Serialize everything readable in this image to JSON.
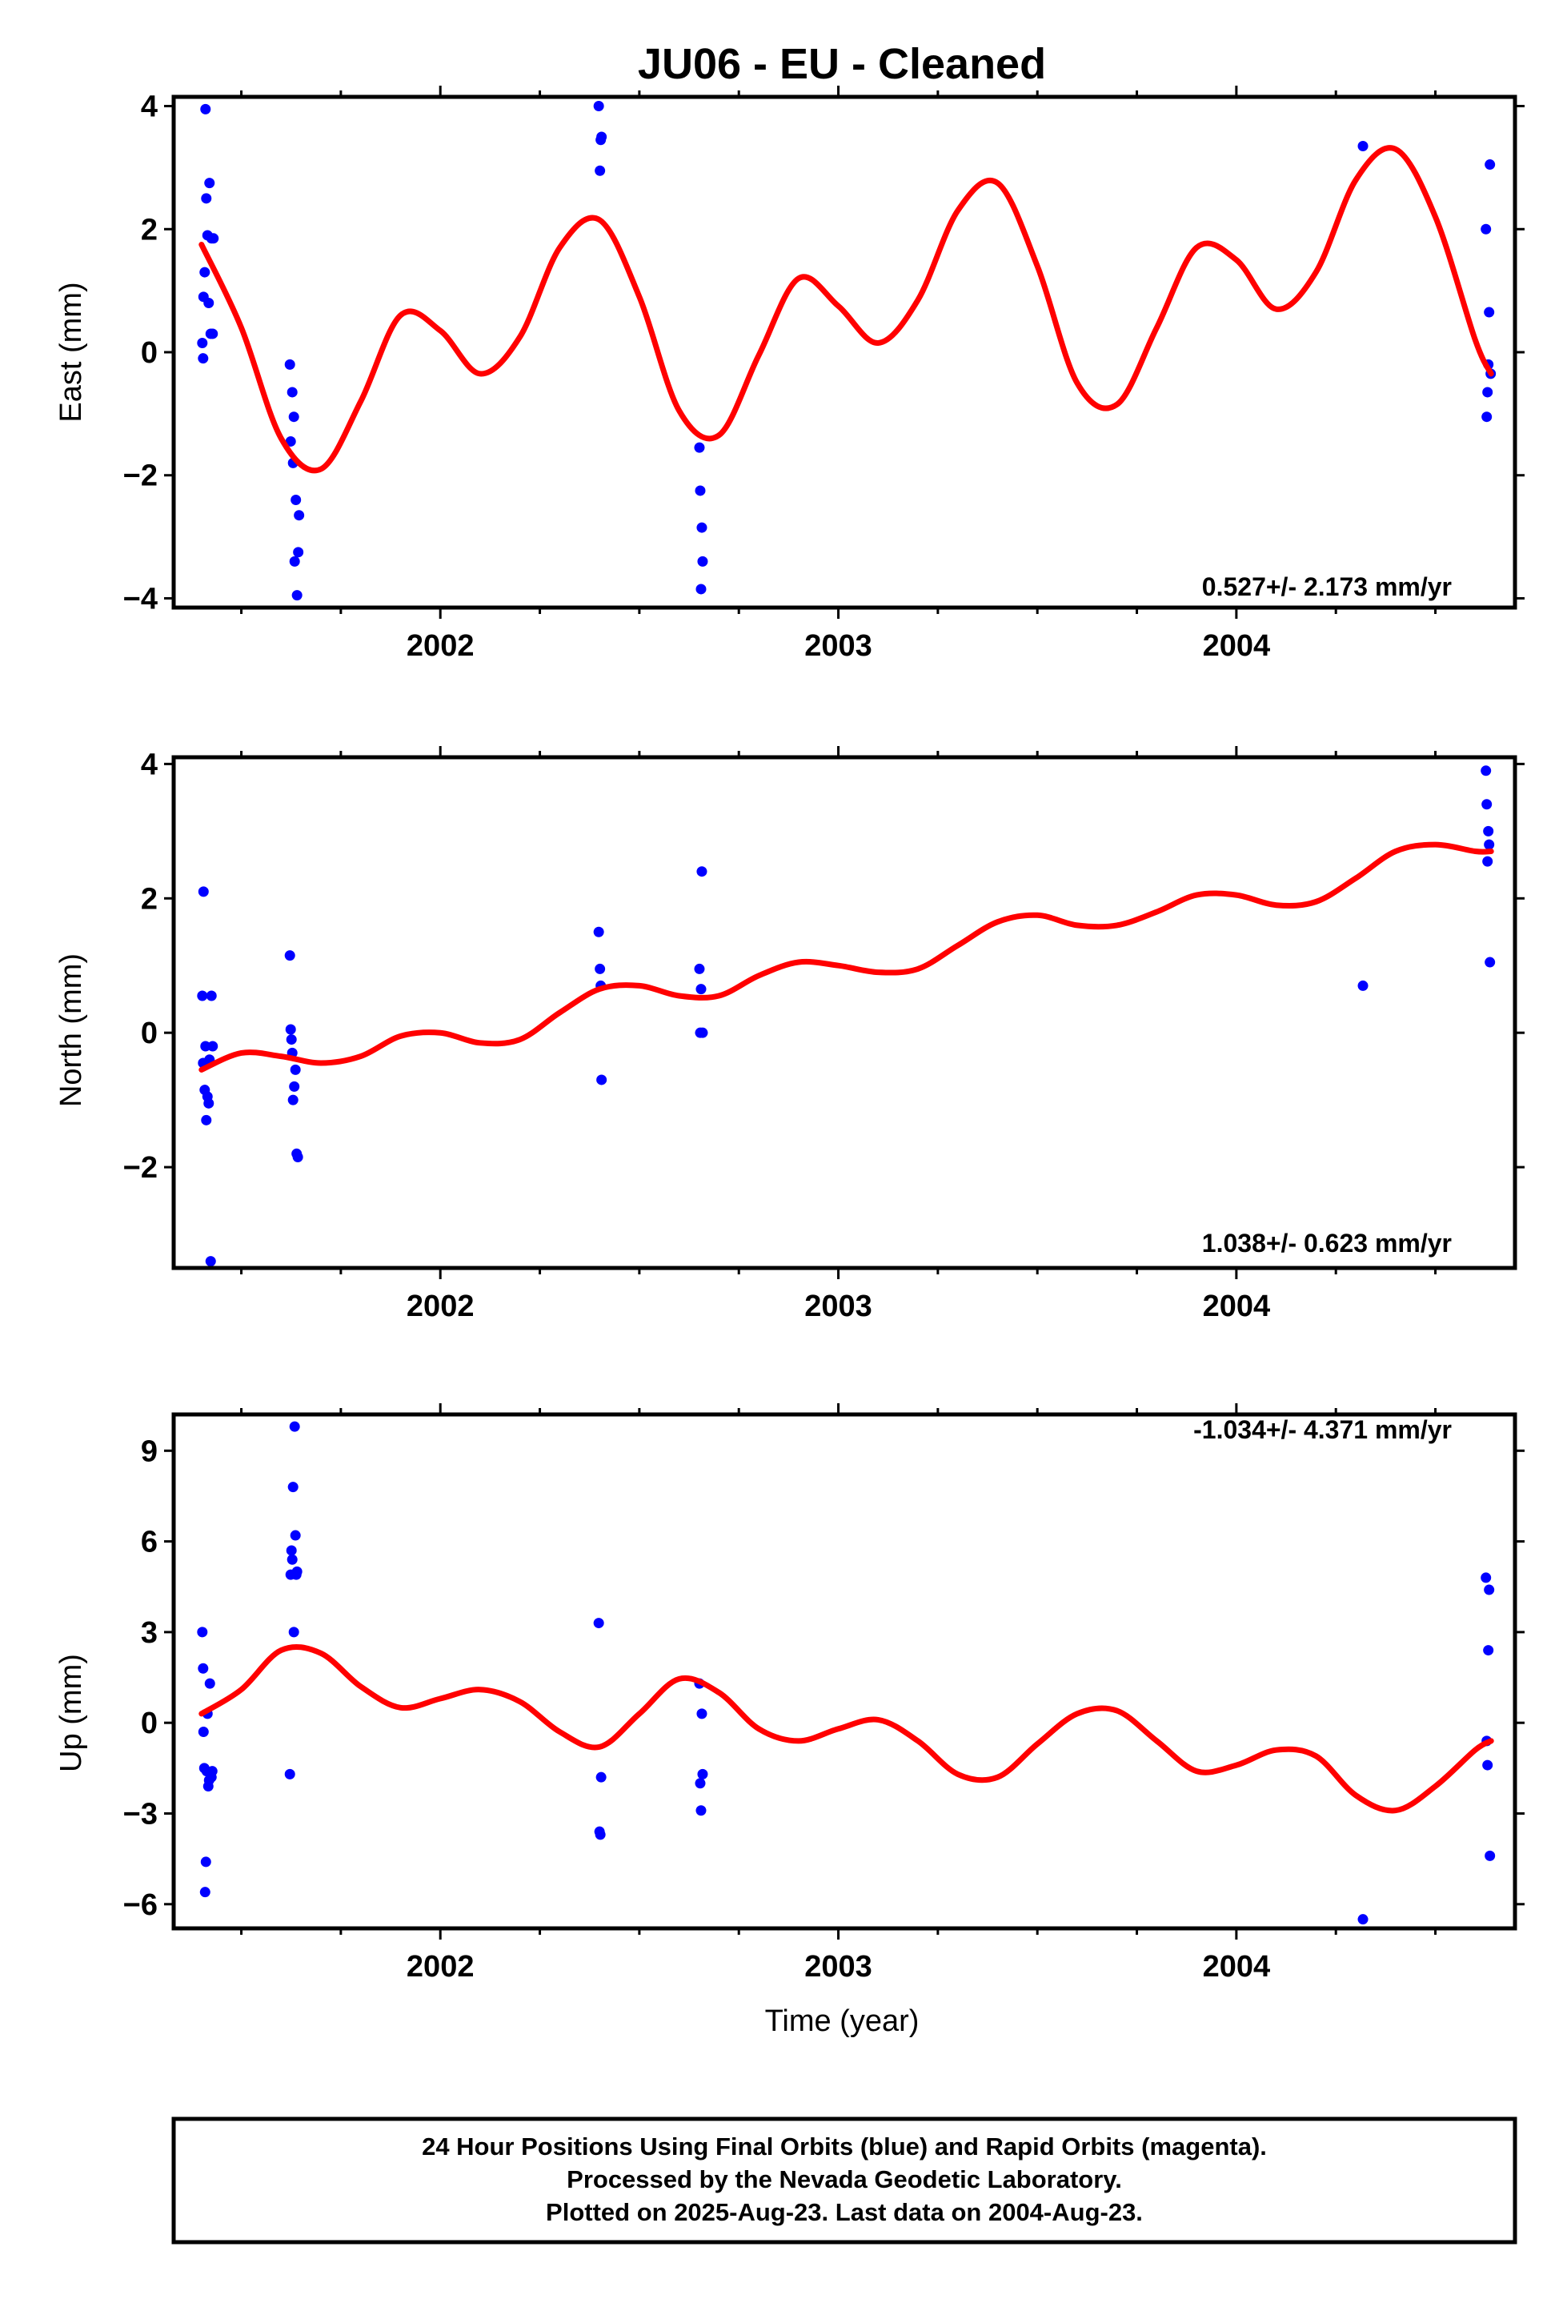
{
  "title": "JU06  - EU - Cleaned",
  "xlabel": "Time (year)",
  "footer": [
    "24 Hour Positions Using Final Orbits (blue) and Rapid Orbits (magenta).",
    "Processed by the Nevada Geodetic Laboratory.",
    "Plotted on 2025-Aug-23. Last data on 2004-Aug-23."
  ],
  "colors": {
    "points": "#0000ff",
    "fit": "#ff0000",
    "frame": "#000000"
  },
  "chart_data": [
    {
      "type": "scatter",
      "ylabel": "East (mm)",
      "rate": "0.527+/- 2.173 mm/yr",
      "xlim": [
        2001.33,
        2004.7
      ],
      "ylim": [
        -4.15,
        4.15
      ],
      "yticks": [
        -4,
        -2,
        0,
        2,
        4
      ],
      "yticklabels": [
        "−4",
        "−2",
        "0",
        "2",
        "4"
      ],
      "xticks": [
        2002,
        2003,
        2004
      ],
      "xticklabels": [
        "2002",
        "2003",
        "2004"
      ],
      "x_minor_ticks": [
        2001.5,
        2001.75,
        2002.25,
        2002.5,
        2002.75,
        2003.25,
        2003.5,
        2003.75,
        2004.25,
        2004.5
      ],
      "points": {
        "x": [
          2001.402,
          2001.404,
          2001.405,
          2001.408,
          2001.41,
          2001.412,
          2001.415,
          2001.418,
          2001.42,
          2001.423,
          2001.425,
          2001.428,
          2001.43,
          2001.622,
          2001.624,
          2001.628,
          2001.63,
          2001.632,
          2001.634,
          2001.637,
          2001.64,
          2001.643,
          2001.645,
          2002.398,
          2002.401,
          2002.403,
          2002.405,
          2002.651,
          2002.653,
          2002.655,
          2002.657,
          2002.659,
          2004.318,
          2004.627,
          2004.629,
          2004.631,
          2004.633,
          2004.635,
          2004.637,
          2004.639
        ],
        "y": [
          0.15,
          -0.1,
          0.9,
          1.3,
          3.95,
          2.5,
          1.9,
          0.8,
          2.75,
          0.3,
          1.85,
          0.3,
          1.85,
          -0.2,
          -1.45,
          -0.65,
          -1.8,
          -1.05,
          -3.4,
          -2.4,
          -3.95,
          -3.25,
          -2.65,
          4.0,
          2.95,
          3.45,
          3.5,
          -1.55,
          -2.25,
          -3.85,
          -2.85,
          -3.4,
          3.35,
          2.0,
          -1.05,
          -0.65,
          -0.2,
          0.65,
          3.05,
          -0.35
        ]
      },
      "fit": {
        "x": [
          2001.4,
          2001.5,
          2001.6,
          2001.7,
          2001.8,
          2001.9,
          2002.0,
          2002.1,
          2002.2,
          2002.3,
          2002.4,
          2002.5,
          2002.6,
          2002.7,
          2002.8,
          2002.9,
          2003.0,
          2003.1,
          2003.2,
          2003.3,
          2003.4,
          2003.5,
          2003.6,
          2003.7,
          2003.8,
          2003.9,
          2004.0,
          2004.1,
          2004.2,
          2004.3,
          2004.4,
          2004.5,
          2004.6,
          2004.64
        ],
        "y": [
          1.75,
          0.4,
          -1.4,
          -1.9,
          -0.8,
          0.6,
          0.35,
          -0.35,
          0.25,
          1.7,
          2.15,
          0.9,
          -0.95,
          -1.35,
          -0.05,
          1.2,
          0.75,
          0.15,
          0.85,
          2.3,
          2.75,
          1.4,
          -0.5,
          -0.85,
          0.4,
          1.7,
          1.5,
          0.7,
          1.3,
          2.8,
          3.3,
          2.2,
          0.2,
          -0.35
        ]
      }
    },
    {
      "type": "scatter",
      "ylabel": "North (mm)",
      "rate": "1.038+/- 0.623 mm/yr",
      "xlim": [
        2001.33,
        2004.7
      ],
      "ylim": [
        -3.5,
        4.1
      ],
      "yticks": [
        -2,
        0,
        2,
        4
      ],
      "yticklabels": [
        "−2",
        "0",
        "2",
        "4"
      ],
      "xticks": [
        2002,
        2003,
        2004
      ],
      "xticklabels": [
        "2002",
        "2003",
        "2004"
      ],
      "x_minor_ticks": [
        2001.5,
        2001.75,
        2002.25,
        2002.5,
        2002.75,
        2003.25,
        2003.5,
        2003.75,
        2004.25,
        2004.5
      ],
      "points": {
        "x": [
          2001.402,
          2001.404,
          2001.405,
          2001.408,
          2001.41,
          2001.412,
          2001.415,
          2001.418,
          2001.42,
          2001.423,
          2001.425,
          2001.428,
          2001.622,
          2001.624,
          2001.626,
          2001.628,
          2001.63,
          2001.633,
          2001.636,
          2001.639,
          2001.642,
          2002.398,
          2002.401,
          2002.403,
          2002.405,
          2002.651,
          2002.653,
          2002.655,
          2002.657,
          2002.659,
          2004.318,
          2004.627,
          2004.629,
          2004.631,
          2004.633,
          2004.635,
          2004.637
        ],
        "y": [
          0.55,
          -0.45,
          2.1,
          -0.85,
          -0.2,
          -1.3,
          -0.95,
          -1.05,
          -0.4,
          -3.4,
          0.55,
          -0.2,
          1.15,
          0.05,
          -0.1,
          -0.3,
          -1.0,
          -0.8,
          -0.55,
          -1.8,
          -1.85,
          1.5,
          0.95,
          0.7,
          -0.7,
          0.95,
          0.0,
          0.65,
          2.4,
          0.0,
          0.7,
          3.9,
          3.4,
          2.55,
          3.0,
          2.8,
          1.05
        ]
      },
      "fit": {
        "x": [
          2001.4,
          2001.5,
          2001.6,
          2001.7,
          2001.8,
          2001.9,
          2002.0,
          2002.1,
          2002.2,
          2002.3,
          2002.4,
          2002.5,
          2002.6,
          2002.7,
          2002.8,
          2002.9,
          2003.0,
          2003.1,
          2003.2,
          2003.3,
          2003.4,
          2003.5,
          2003.6,
          2003.7,
          2003.8,
          2003.9,
          2004.0,
          2004.1,
          2004.2,
          2004.3,
          2004.4,
          2004.5,
          2004.6,
          2004.64
        ],
        "y": [
          -0.55,
          -0.3,
          -0.35,
          -0.45,
          -0.35,
          -0.05,
          0.0,
          -0.15,
          -0.1,
          0.3,
          0.65,
          0.7,
          0.55,
          0.55,
          0.85,
          1.05,
          1.0,
          0.9,
          0.95,
          1.3,
          1.65,
          1.75,
          1.6,
          1.6,
          1.8,
          2.05,
          2.05,
          1.9,
          1.95,
          2.3,
          2.7,
          2.8,
          2.7,
          2.7
        ]
      }
    },
    {
      "type": "scatter",
      "ylabel": "Up (mm)",
      "rate": "-1.034+/- 4.371 mm/yr",
      "xlim": [
        2001.33,
        2004.7
      ],
      "ylim": [
        -6.8,
        10.2
      ],
      "yticks": [
        -6,
        -3,
        0,
        3,
        6,
        9
      ],
      "yticklabels": [
        "−6",
        "−3",
        "0",
        "3",
        "6",
        "9"
      ],
      "xticks": [
        2002,
        2003,
        2004
      ],
      "xticklabels": [
        "2002",
        "2003",
        "2004"
      ],
      "x_minor_ticks": [
        2001.5,
        2001.75,
        2002.25,
        2002.5,
        2002.75,
        2003.25,
        2003.5,
        2003.75,
        2004.25,
        2004.5
      ],
      "points": {
        "x": [
          2001.402,
          2001.404,
          2001.405,
          2001.407,
          2001.409,
          2001.411,
          2001.413,
          2001.415,
          2001.417,
          2001.419,
          2001.421,
          2001.423,
          2001.425,
          2001.427,
          2001.622,
          2001.624,
          2001.626,
          2001.628,
          2001.63,
          2001.632,
          2001.634,
          2001.636,
          2001.638,
          2001.64,
          2002.398,
          2002.4,
          2002.402,
          2002.404,
          2002.651,
          2002.653,
          2002.655,
          2002.657,
          2002.659,
          2004.318,
          2004.627,
          2004.629,
          2004.631,
          2004.633,
          2004.635,
          2004.637
        ],
        "y": [
          3.0,
          1.8,
          -0.3,
          -1.5,
          -5.6,
          -4.6,
          -1.6,
          0.3,
          -2.1,
          -1.9,
          1.3,
          -1.7,
          -1.8,
          -1.6,
          -1.7,
          4.9,
          5.7,
          5.4,
          7.8,
          3.0,
          9.8,
          6.2,
          4.9,
          5.0,
          3.3,
          -3.6,
          -3.7,
          -1.8,
          1.3,
          -2.0,
          -2.9,
          0.3,
          -1.7,
          -6.5,
          4.8,
          -0.6,
          -1.4,
          2.4,
          4.4,
          -4.4
        ]
      },
      "fit": {
        "x": [
          2001.4,
          2001.5,
          2001.6,
          2001.7,
          2001.8,
          2001.9,
          2002.0,
          2002.1,
          2002.2,
          2002.3,
          2002.4,
          2002.5,
          2002.6,
          2002.7,
          2002.8,
          2002.9,
          2003.0,
          2003.1,
          2003.2,
          2003.3,
          2003.4,
          2003.5,
          2003.6,
          2003.7,
          2003.8,
          2003.9,
          2004.0,
          2004.1,
          2004.2,
          2004.3,
          2004.4,
          2004.5,
          2004.6,
          2004.64
        ],
        "y": [
          0.3,
          1.1,
          2.4,
          2.3,
          1.2,
          0.5,
          0.8,
          1.1,
          0.7,
          -0.3,
          -0.8,
          0.3,
          1.45,
          1.0,
          -0.2,
          -0.6,
          -0.2,
          0.1,
          -0.6,
          -1.7,
          -1.8,
          -0.7,
          0.3,
          0.4,
          -0.6,
          -1.6,
          -1.4,
          -0.9,
          -1.1,
          -2.4,
          -2.9,
          -2.1,
          -0.9,
          -0.6
        ]
      }
    }
  ]
}
